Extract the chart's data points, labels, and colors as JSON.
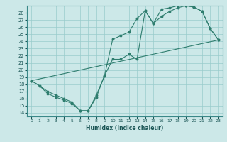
{
  "xlabel": "Humidex (Indice chaleur)",
  "background_color": "#cce8e8",
  "grid_color": "#99cccc",
  "line_color": "#2e7d6e",
  "xlim": [
    -0.5,
    23.5
  ],
  "ylim": [
    13.5,
    29.0
  ],
  "xticks": [
    0,
    1,
    2,
    3,
    4,
    5,
    6,
    7,
    8,
    9,
    10,
    11,
    12,
    13,
    14,
    15,
    16,
    17,
    18,
    19,
    20,
    21,
    22,
    23
  ],
  "yticks": [
    14,
    15,
    16,
    17,
    18,
    19,
    20,
    21,
    22,
    23,
    24,
    25,
    26,
    27,
    28
  ],
  "series1_x": [
    0,
    1,
    2,
    3,
    4,
    5,
    6,
    7,
    8,
    9,
    10,
    11,
    12,
    13,
    14,
    15,
    16,
    17,
    18,
    19,
    20,
    21,
    22,
    23
  ],
  "series1_y": [
    18.5,
    17.8,
    17.0,
    16.5,
    16.0,
    15.5,
    14.3,
    14.3,
    16.5,
    19.2,
    24.3,
    24.8,
    25.3,
    27.2,
    28.3,
    26.5,
    28.5,
    28.7,
    29.0,
    29.0,
    28.8,
    28.2,
    25.8,
    24.2
  ],
  "series2_x": [
    0,
    1,
    2,
    3,
    4,
    5,
    6,
    7,
    8,
    9,
    10,
    11,
    12,
    13,
    14,
    15,
    16,
    17,
    18,
    19,
    20,
    21,
    22,
    23
  ],
  "series2_y": [
    18.5,
    17.8,
    16.7,
    16.2,
    15.8,
    15.3,
    14.3,
    14.3,
    16.2,
    19.2,
    21.5,
    21.5,
    22.2,
    21.5,
    28.3,
    26.5,
    27.5,
    28.2,
    28.7,
    29.0,
    28.8,
    28.2,
    25.8,
    24.2
  ],
  "series3_x": [
    0,
    23
  ],
  "series3_y": [
    18.5,
    24.2
  ]
}
